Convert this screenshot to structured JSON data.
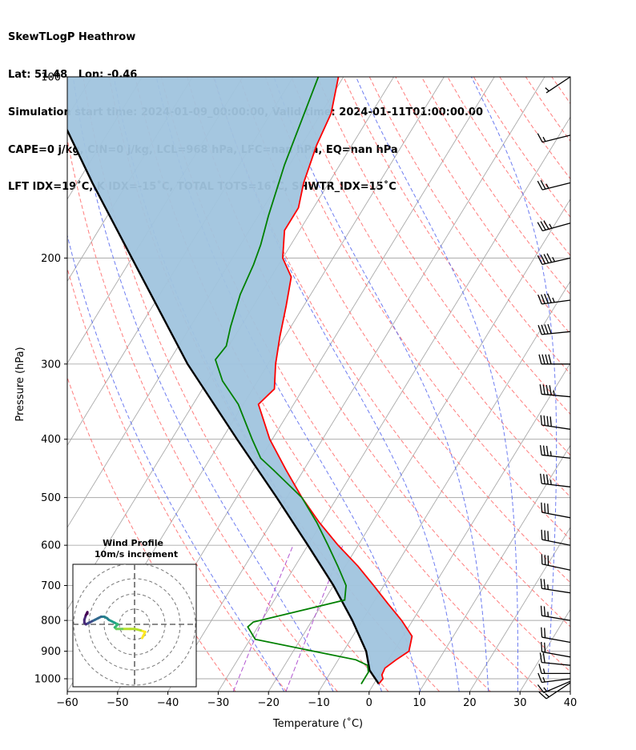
{
  "header": {
    "lines": [
      "SkewTLogP Heathrow",
      "Lat: 51.48   Lon: -0.46",
      "Simulation start time: 2024-01-09_00:00:00, Valid time: 2024-01-11T01:00:00.00",
      "CAPE=0 j/kg, CIN=0 j/kg, LCL=968 hPa, LFC=nan hPa, EQ=nan hPa",
      "LFT IDX=19˚C, K IDX=-15˚C, TOTAL TOTS=16˚C, SHWTR_IDX=15˚C"
    ]
  },
  "chart_data": {
    "type": "skewt",
    "title": "SkewTLogP Heathrow",
    "xlabel": "Temperature (˚C)",
    "ylabel": "Pressure (hPa)",
    "xlim": [
      -60,
      40
    ],
    "ylim": [
      1050,
      100
    ],
    "y_scale": "log",
    "x_ticks": [
      -60,
      -50,
      -40,
      -30,
      -20,
      -10,
      0,
      10,
      20,
      30,
      40
    ],
    "y_ticks": [
      100,
      200,
      300,
      400,
      500,
      600,
      700,
      800,
      900,
      1000
    ],
    "grid": true,
    "colors": {
      "temperature": "#ff0000",
      "dewpoint": "#008000",
      "parcel": "#000000",
      "fill": "#a0c4de",
      "dry_adiabats": "#ff6666",
      "moist_adiabats": "#5566ee",
      "mixing_ratio": "#aa44cc",
      "isotherms": "#aaaaaa"
    },
    "temperature": {
      "name": "",
      "pressure": [
        1020,
        1000,
        985,
        960,
        930,
        900,
        850,
        800,
        750,
        700,
        650,
        600,
        550,
        500,
        450,
        400,
        350,
        330,
        300,
        270,
        240,
        215,
        200,
        180,
        165,
        150,
        130,
        115,
        100
      ],
      "temp": [
        1.0,
        1.2,
        0.5,
        0.3,
        1.5,
        3.0,
        1.8,
        -2.2,
        -7.0,
        -12.0,
        -17.5,
        -24.0,
        -30.5,
        -37.0,
        -43.5,
        -50.5,
        -57.0,
        -55.7,
        -58.5,
        -61.0,
        -63.5,
        -66.0,
        -70.0,
        -73.0,
        -73.0,
        -75.0,
        -77.0,
        -78.0,
        -81.0
      ]
    },
    "dewpoint": {
      "name": "",
      "pressure": [
        1020,
        975,
        950,
        930,
        860,
        820,
        805,
        740,
        700,
        650,
        600,
        550,
        500,
        450,
        430,
        400,
        350,
        320,
        295,
        280,
        260,
        230,
        205,
        190,
        170,
        140,
        100
      ],
      "dewpt": [
        -2.5,
        -2.5,
        -3.5,
        -6.5,
        -29.0,
        -32.0,
        -31.5,
        -16.0,
        -17.5,
        -21.5,
        -26.0,
        -31.0,
        -37.0,
        -46.0,
        -50.0,
        -54.0,
        -61.0,
        -67.0,
        -71.0,
        -70.5,
        -72.0,
        -74.0,
        -75.0,
        -76.0,
        -78.0,
        -81.0,
        -85.0
      ]
    },
    "parcel": {
      "name": "",
      "pressure": [
        1020,
        968,
        900,
        800,
        700,
        600,
        500,
        400,
        300,
        200,
        150,
        100
      ],
      "temp": [
        1.0,
        -2.5,
        -5.5,
        -12.0,
        -20.0,
        -30.0,
        -42.0,
        -57.0,
        -76.0,
        -100.0,
        -117.0,
        -140.0
      ]
    },
    "wind_barbs": {
      "pressure": [
        100,
        125,
        150,
        175,
        200,
        235,
        265,
        300,
        340,
        385,
        430,
        480,
        540,
        600,
        660,
        720,
        800,
        870,
        920,
        950,
        980,
        1000,
        1010,
        1015
      ],
      "u_ms": [
        3,
        8,
        12,
        18,
        22,
        22,
        20,
        20,
        22,
        20,
        18,
        17,
        16,
        15,
        14,
        13,
        12,
        11,
        11,
        10,
        9,
        8,
        7,
        6
      ],
      "v_ms": [
        2,
        2,
        3,
        5,
        5,
        3,
        2,
        0,
        -2,
        -3,
        -2,
        -2,
        -3,
        -3,
        -3,
        -2,
        -2,
        -2,
        -2,
        -1,
        0,
        1,
        3,
        4
      ]
    },
    "hodograph": {
      "title": "Wind Profile",
      "subtitle": "10m/s increment",
      "rings_ms": [
        10,
        20,
        30,
        40
      ],
      "u": [
        5,
        6,
        7,
        4,
        0,
        -3,
        -8,
        -12,
        -13,
        -12,
        -11,
        -13,
        -15,
        -17,
        -18,
        -20,
        -22,
        -24,
        -26,
        -28,
        -30,
        -32,
        -33,
        -33,
        -32,
        -31,
        -31
      ],
      "v": [
        -9,
        -7,
        -5,
        -4,
        -3,
        -3,
        -3,
        -3,
        -2,
        -1,
        0,
        1,
        2,
        3,
        4,
        5,
        5,
        4,
        3,
        2,
        1,
        0,
        1,
        3,
        6,
        8,
        7
      ]
    }
  }
}
